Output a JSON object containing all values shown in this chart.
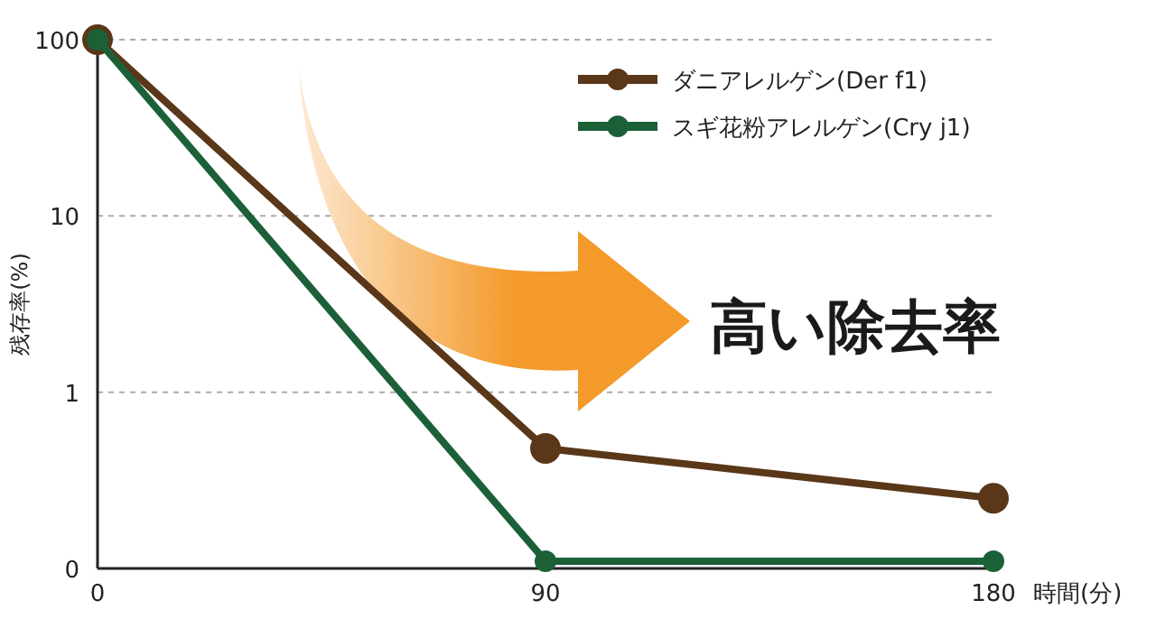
{
  "chart_data": {
    "type": "line",
    "xlabel": "時間(分)",
    "ylabel": "残存率(%)",
    "x": [
      0,
      90,
      180
    ],
    "xlim": [
      0,
      180
    ],
    "xticks": [
      0,
      90,
      180
    ],
    "ylim": [
      0.1,
      100
    ],
    "yticks": [
      {
        "value": 0.1,
        "label": "0"
      },
      1,
      10,
      100
    ],
    "log": "y",
    "grid": "y",
    "legend": "top right",
    "marker": "circle",
    "annotations": [
      "高い除去率"
    ],
    "series": [
      {
        "name": "ダニアレルゲン(Der f1)",
        "color": "#5a3719",
        "values": [
          100,
          0.48,
          0.25
        ]
      },
      {
        "name": "スギ花粉アレルゲン(Cry j1)",
        "color": "#1c6038",
        "values": [
          100,
          0.11,
          0.11
        ]
      }
    ]
  }
}
